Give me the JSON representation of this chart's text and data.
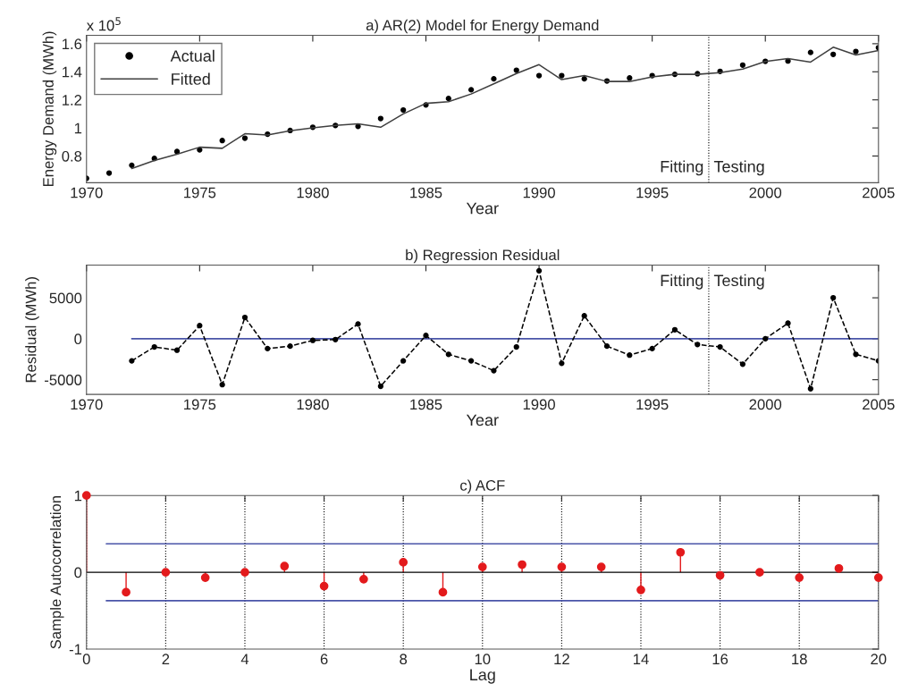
{
  "chart_data": [
    {
      "type": "line",
      "title": "a) AR(2) Model for Energy Demand",
      "xlabel": "Year",
      "ylabel": "Energy Demand (MWh)",
      "annotations": [
        "x 10$^{5}$",
        "Fitting",
        "Testing"
      ],
      "xlim": [
        1970,
        2005
      ],
      "xticks": [
        1970,
        1975,
        1980,
        1985,
        1990,
        1995,
        2000,
        2005
      ],
      "ylim": [
        0.61,
        1.66
      ],
      "yticks": [
        0.8,
        1,
        1.2,
        1.4,
        1.6
      ],
      "legend": "top left",
      "grid": false,
      "ref_lines": [
        {
          "axis": "x",
          "value": 1997.5,
          "color": "#000000",
          "line_style": "dotted"
        }
      ],
      "series": [
        {
          "name": "Actual",
          "type": "scatter",
          "marker": "circle",
          "color": "#000000",
          "x": [
            1970,
            1971,
            1972,
            1973,
            1974,
            1975,
            1976,
            1977,
            1978,
            1979,
            1980,
            1981,
            1982,
            1983,
            1984,
            1985,
            1986,
            1987,
            1988,
            1989,
            1990,
            1991,
            1992,
            1993,
            1994,
            1995,
            1996,
            1997,
            1998,
            1999,
            2000,
            2001,
            2002,
            2003,
            2004,
            2005
          ],
          "values": [
            0.641,
            0.679,
            0.734,
            0.783,
            0.832,
            0.844,
            0.91,
            0.927,
            0.956,
            0.982,
            1.005,
            1.018,
            1.011,
            1.067,
            1.128,
            1.164,
            1.21,
            1.272,
            1.35,
            1.411,
            1.373,
            1.373,
            1.35,
            1.335,
            1.356,
            1.373,
            1.382,
            1.386,
            1.403,
            1.448,
            1.475,
            1.477,
            1.538,
            1.524,
            1.545,
            1.572
          ]
        },
        {
          "name": "Fitted",
          "marker": "none",
          "line_style": "solid",
          "color": "#404040",
          "x": [
            1972,
            1973,
            1974,
            1975,
            1976,
            1977,
            1978,
            1979,
            1980,
            1981,
            1982,
            1983,
            1984,
            1985,
            1986,
            1987,
            1988,
            1989,
            1990,
            1991,
            1992,
            1993,
            1994,
            1995,
            1996,
            1997,
            1998,
            1999,
            2000,
            2001,
            2002,
            2003,
            2004,
            2005
          ],
          "values": [
            0.711,
            0.768,
            0.813,
            0.863,
            0.855,
            0.959,
            0.95,
            0.98,
            1.0,
            1.018,
            1.03,
            1.005,
            1.1,
            1.175,
            1.187,
            1.242,
            1.314,
            1.388,
            1.451,
            1.344,
            1.373,
            1.331,
            1.331,
            1.363,
            1.382,
            1.382,
            1.394,
            1.42,
            1.473,
            1.494,
            1.469,
            1.575,
            1.52,
            1.551
          ]
        }
      ]
    },
    {
      "type": "line",
      "title": "b) Regression Residual",
      "xlabel": "Year",
      "ylabel": "Residual (MWh)",
      "annotations": [
        "Fitting",
        "Testing"
      ],
      "xlim": [
        1970,
        2005
      ],
      "xticks": [
        1970,
        1975,
        1980,
        1985,
        1990,
        1995,
        2000,
        2005
      ],
      "ylim": [
        -6800,
        9000
      ],
      "yticks": [
        -5000,
        0,
        5000
      ],
      "grid": false,
      "ref_lines": [
        {
          "axis": "x",
          "value": 1997.5,
          "color": "#000000",
          "line_style": "dotted"
        }
      ],
      "series": [
        {
          "marker": "none",
          "line_style": "solid",
          "color": "#4a55a8",
          "x": [
            1972,
            2005
          ],
          "values": [
            0,
            0
          ]
        },
        {
          "marker": "circle",
          "line_style": "dashed",
          "color": "#000000",
          "x": [
            1972,
            1973,
            1974,
            1975,
            1976,
            1977,
            1978,
            1979,
            1980,
            1981,
            1982,
            1983,
            1984,
            1985,
            1986,
            1987,
            1988,
            1989,
            1990,
            1991,
            1992,
            1993,
            1994,
            1995,
            1996,
            1997,
            1998,
            1999,
            2000,
            2001,
            2002,
            2003,
            2004,
            2005
          ],
          "values": [
            -2700,
            -1000,
            -1400,
            1600,
            -5600,
            2600,
            -1200,
            -900,
            -200,
            -100,
            1800,
            -5800,
            -2700,
            400,
            -1900,
            -2700,
            -3900,
            -1000,
            8300,
            -3000,
            2800,
            -900,
            -2000,
            -1200,
            1100,
            -700,
            -1000,
            -3100,
            0,
            1900,
            -6100,
            5000,
            -1900,
            -2700
          ]
        }
      ]
    },
    {
      "type": "lollipop",
      "title": "c) ACF",
      "xlabel": "Lag",
      "ylabel": "Sample Autocorrelation",
      "xlim": [
        0,
        20
      ],
      "xticks": [
        0,
        2,
        4,
        6,
        8,
        10,
        12,
        14,
        16,
        18,
        20
      ],
      "ylim": [
        -1,
        1
      ],
      "yticks": [
        -1,
        0,
        1
      ],
      "grid": "x",
      "series": [
        {
          "marker": "circle",
          "color": "#e31a1c",
          "x": [
            0,
            1,
            2,
            3,
            4,
            5,
            6,
            7,
            8,
            9,
            10,
            11,
            12,
            13,
            14,
            15,
            16,
            17,
            18,
            19,
            20
          ],
          "values": [
            1,
            -0.26,
            0,
            -0.07,
            0,
            0.08,
            -0.18,
            -0.09,
            0.13,
            -0.26,
            0.07,
            0.1,
            0.07,
            0.07,
            -0.23,
            0.26,
            -0.04,
            0,
            -0.07,
            0.05,
            -0.07
          ]
        },
        {
          "type": "line",
          "marker": "none",
          "line_style": "solid",
          "color": "#4a55a8",
          "x": [
            0.5,
            20
          ],
          "values": [
            0.37,
            0.37
          ]
        },
        {
          "type": "line",
          "marker": "none",
          "line_style": "solid",
          "color": "#4a55a8",
          "x": [
            0.5,
            20
          ],
          "values": [
            -0.37,
            -0.37
          ]
        }
      ]
    }
  ]
}
